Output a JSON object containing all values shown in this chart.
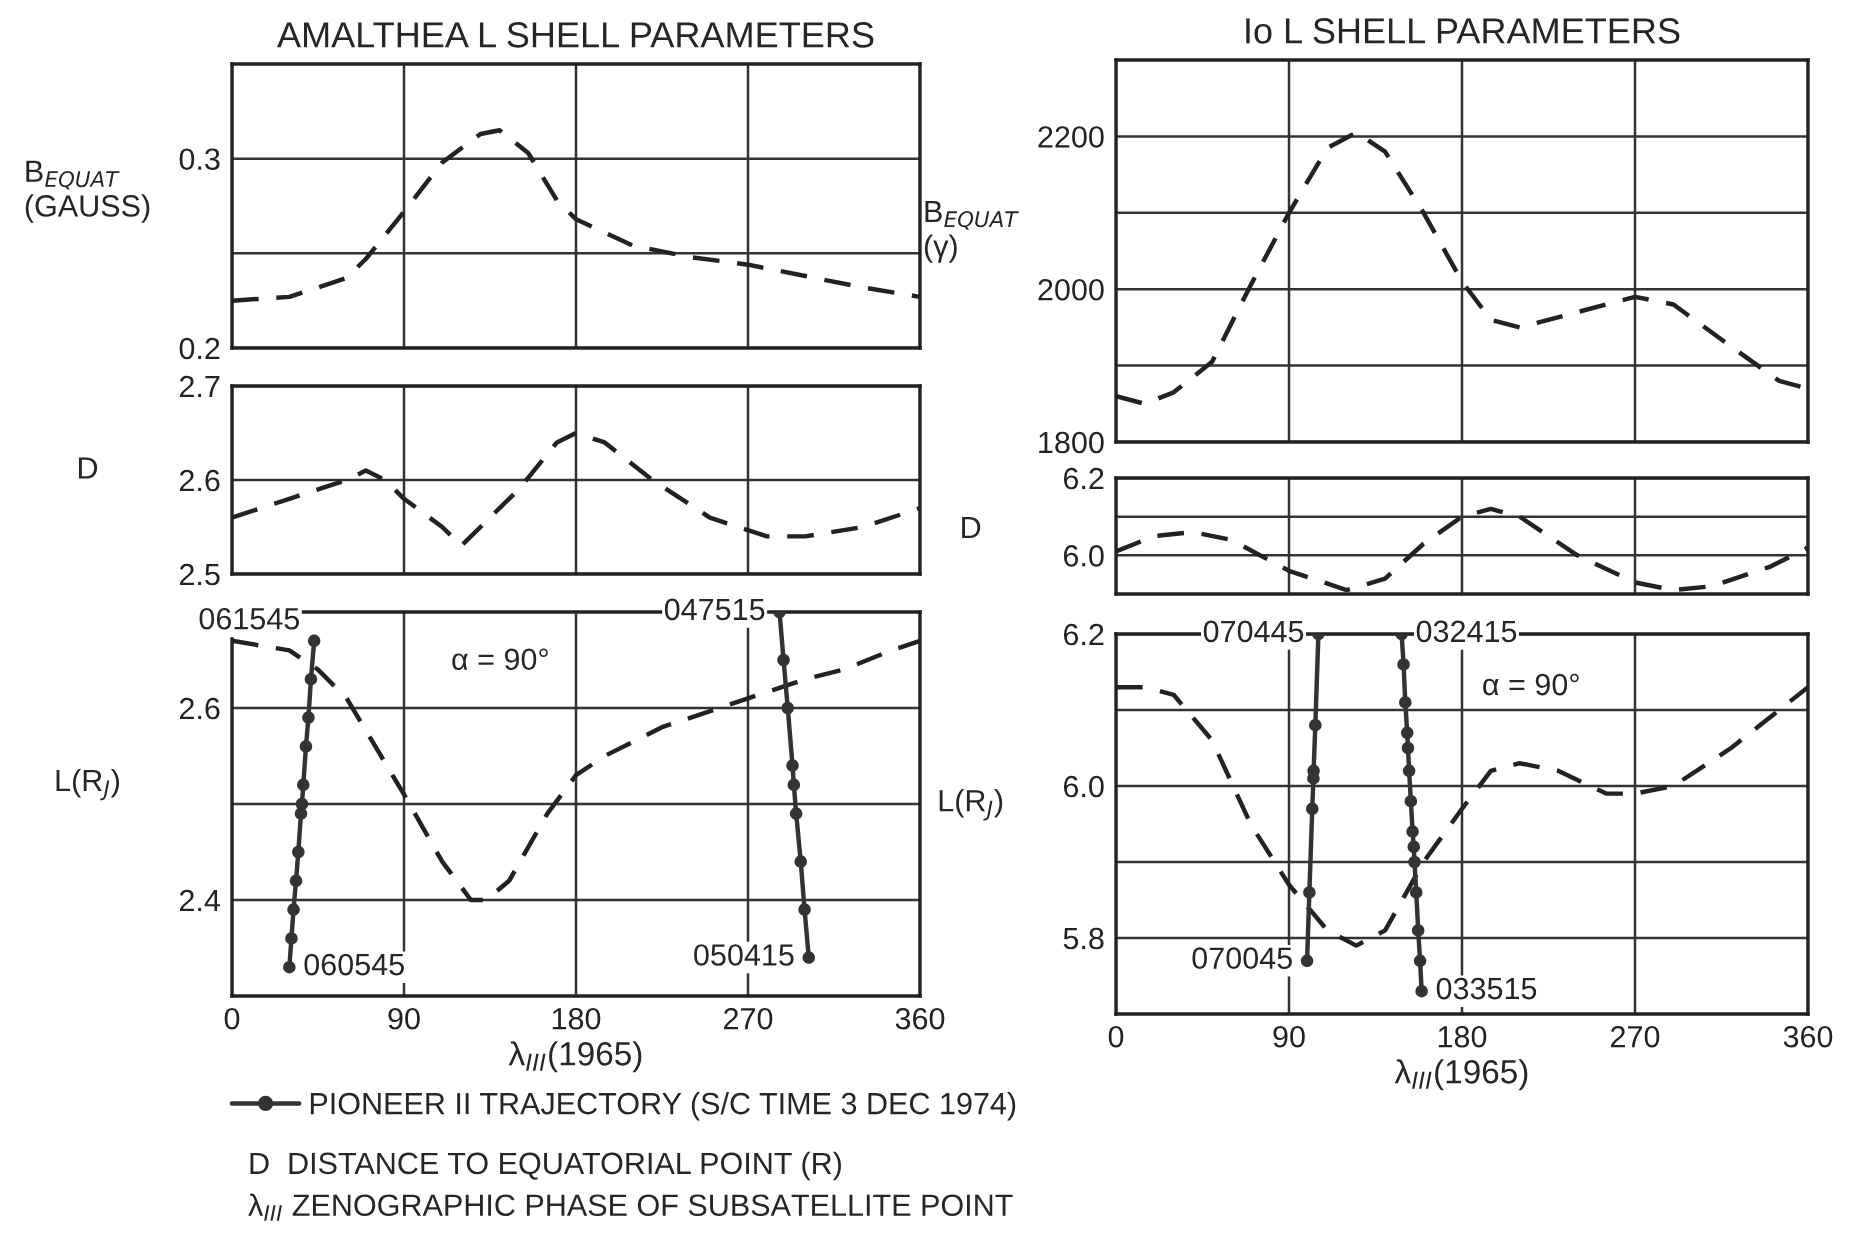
{
  "chart_data": [
    {
      "type": "line",
      "title": "AMALTHEA L SHELL PARAMETERS",
      "ylabel": "B$_{EQUAT}$\n(GAUSS)",
      "xlim": [
        0,
        360
      ],
      "xticks": [
        0,
        90,
        180,
        270,
        360
      ],
      "ylim": [
        0.2,
        0.35
      ],
      "yticks": [
        0.2,
        {
          "value": 0.25,
          "label": null
        },
        0.3
      ],
      "grid": true,
      "tick_labels": "y",
      "series": [
        {
          "color": "#222222",
          "line_style": "dashed",
          "marker": "none",
          "x": [
            0,
            30,
            60,
            70,
            90,
            110,
            130,
            140,
            155,
            170,
            180,
            210,
            240,
            270,
            300,
            330,
            360
          ],
          "values": [
            0.225,
            0.227,
            0.237,
            0.247,
            0.272,
            0.298,
            0.313,
            0.315,
            0.303,
            0.278,
            0.268,
            0.254,
            0.248,
            0.244,
            0.238,
            0.232,
            0.227
          ]
        }
      ]
    },
    {
      "type": "line",
      "title": "Io L SHELL PARAMETERS",
      "ylabel": "B$_{EQUAT}$\n(γ)",
      "xlim": [
        0,
        360
      ],
      "xticks": [
        0,
        90,
        180,
        270,
        360
      ],
      "ylim": [
        1800,
        2300
      ],
      "yticks": [
        1800,
        {
          "value": 1900,
          "label": null
        },
        2000,
        {
          "value": 2100,
          "label": null
        },
        2200
      ],
      "grid": true,
      "tick_labels": "y",
      "series": [
        {
          "color": "#222222",
          "line_style": "dashed",
          "marker": "none",
          "x": [
            0,
            15,
            30,
            50,
            70,
            90,
            110,
            125,
            140,
            160,
            180,
            195,
            210,
            240,
            270,
            290,
            320,
            345,
            360
          ],
          "values": [
            1860,
            1850,
            1865,
            1905,
            2005,
            2100,
            2185,
            2205,
            2180,
            2100,
            2010,
            1960,
            1950,
            1970,
            1990,
            1980,
            1925,
            1880,
            1870
          ]
        }
      ]
    },
    {
      "type": "line",
      "ylabel": "D",
      "xlim": [
        0,
        360
      ],
      "xticks": [
        0,
        90,
        180,
        270,
        360
      ],
      "ylim": [
        2.5,
        2.7
      ],
      "yticks": [
        2.5,
        2.6,
        2.7
      ],
      "grid": true,
      "tick_labels": "y",
      "series": [
        {
          "color": "#222222",
          "line_style": "dashed",
          "marker": "none",
          "x": [
            0,
            30,
            60,
            70,
            80,
            90,
            110,
            120,
            130,
            150,
            170,
            180,
            195,
            220,
            250,
            280,
            300,
            330,
            360
          ],
          "values": [
            2.56,
            2.58,
            2.6,
            2.61,
            2.6,
            2.58,
            2.55,
            2.53,
            2.55,
            2.59,
            2.64,
            2.65,
            2.64,
            2.6,
            2.56,
            2.54,
            2.54,
            2.55,
            2.57
          ]
        }
      ]
    },
    {
      "type": "line",
      "ylabel": "D",
      "xlim": [
        0,
        360
      ],
      "xticks": [
        0,
        90,
        180,
        270,
        360
      ],
      "ylim": [
        5.9,
        6.2
      ],
      "yticks": [
        {
          "value": 6.0,
          "label": "6.0"
        },
        {
          "value": 6.1,
          "label": null
        },
        6.2
      ],
      "grid": true,
      "tick_labels": "y",
      "series": [
        {
          "color": "#222222",
          "line_style": "dashed",
          "marker": "none",
          "x": [
            0,
            20,
            40,
            60,
            90,
            120,
            140,
            160,
            180,
            195,
            210,
            240,
            270,
            290,
            310,
            340,
            360
          ],
          "values": [
            6.01,
            6.05,
            6.06,
            6.04,
            5.96,
            5.91,
            5.94,
            6.03,
            6.1,
            6.12,
            6.1,
            6.0,
            5.93,
            5.91,
            5.92,
            5.97,
            6.02
          ]
        }
      ]
    },
    {
      "type": "line",
      "ylabel": "L(R$_{J}$)",
      "xlabel": "λ$_{III}$(1965)",
      "xlim": [
        0,
        360
      ],
      "xticks": [
        0,
        90,
        180,
        270,
        360
      ],
      "ylim": [
        2.3,
        2.7
      ],
      "yticks": [
        2.4,
        {
          "value": 2.5,
          "label": null
        },
        2.6
      ],
      "grid": true,
      "legend": "bottom",
      "series": [
        {
          "color": "#222222",
          "line_style": "dashed",
          "marker": "none",
          "x": [
            0,
            30,
            45,
            60,
            75,
            90,
            110,
            125,
            133,
            145,
            165,
            180,
            195,
            225,
            270,
            300,
            320,
            345,
            360
          ],
          "values": [
            2.67,
            2.66,
            2.64,
            2.61,
            2.56,
            2.51,
            2.44,
            2.4,
            2.4,
            2.42,
            2.49,
            2.53,
            2.55,
            2.58,
            2.61,
            2.63,
            2.64,
            2.66,
            2.67
          ]
        },
        {
          "name": "PIONEER II TRAJECTORY (S/C TIME 3 DEC 1974)",
          "color": "#333333",
          "line_style": "solid",
          "marker": "circle",
          "x": [
            30,
            31.1,
            32.2,
            33.5,
            34.7,
            36.1,
            36.6,
            37.3,
            38.7,
            40,
            41.3,
            43
          ],
          "values": [
            2.33,
            2.36,
            2.39,
            2.42,
            2.45,
            2.49,
            2.5,
            2.52,
            2.56,
            2.59,
            2.63,
            2.67
          ]
        },
        {
          "color": "#333333",
          "line_style": "solid",
          "marker": "circle",
          "x": [
            286.5,
            288.6,
            290.8,
            293.3,
            294,
            295.2,
            297.6,
            299.6,
            301.8
          ],
          "values": [
            2.7,
            2.65,
            2.6,
            2.54,
            2.52,
            2.49,
            2.44,
            2.39,
            2.34
          ]
        }
      ],
      "annotations": [
        {
          "text": "061545",
          "x": 43,
          "y": 2.67
        },
        {
          "text": "060545",
          "x": 30,
          "y": 2.33
        },
        {
          "text": "047515",
          "x": 286.5,
          "y": 2.7
        },
        {
          "text": "050415",
          "x": 301.8,
          "y": 2.34
        },
        "α = 90°",
        "D  DISTANCE TO EQUATORIAL POINT (R)",
        "λ$_{III}$ ZENOGRAPHIC PHASE OF SUBSATELLITE POINT"
      ]
    },
    {
      "type": "line",
      "ylabel": "L(R$_{J}$)",
      "xlabel": "λ$_{III}$(1965)",
      "xlim": [
        0,
        360
      ],
      "xticks": [
        0,
        90,
        180,
        270,
        360
      ],
      "ylim": [
        5.7,
        6.2
      ],
      "yticks": [
        5.8,
        {
          "value": 5.9,
          "label": null
        },
        {
          "value": 6.0,
          "label": "6.0"
        },
        {
          "value": 6.1,
          "label": null
        },
        6.2
      ],
      "grid": true,
      "series": [
        {
          "color": "#222222",
          "line_style": "dashed",
          "marker": "none",
          "x": [
            0,
            15,
            30,
            50,
            70,
            90,
            110,
            125,
            140,
            160,
            180,
            195,
            210,
            230,
            255,
            270,
            290,
            320,
            345,
            360
          ],
          "values": [
            6.13,
            6.13,
            6.12,
            6.06,
            5.95,
            5.87,
            5.81,
            5.79,
            5.81,
            5.9,
            5.97,
            6.02,
            6.03,
            6.02,
            5.99,
            5.99,
            6.0,
            6.05,
            6.1,
            6.13
          ]
        },
        {
          "color": "#333333",
          "line_style": "solid",
          "marker": "circle",
          "x": [
            99.4,
            100.6,
            102.1,
            102.7,
            102.8,
            103.7,
            105.3
          ],
          "values": [
            5.77,
            5.86,
            5.97,
            6.01,
            6.02,
            6.08,
            6.2
          ]
        },
        {
          "color": "#333333",
          "line_style": "solid",
          "marker": "circle",
          "x": [
            148.6,
            149.6,
            150.5,
            151.5,
            151.9,
            152.5,
            153.4,
            154.3,
            154.9,
            155.3,
            156.2,
            157.2,
            158.2,
            159.0
          ],
          "values": [
            6.2,
            6.16,
            6.11,
            6.07,
            6.05,
            6.02,
            5.98,
            5.94,
            5.92,
            5.9,
            5.86,
            5.81,
            5.77,
            5.73
          ]
        }
      ],
      "annotations": [
        {
          "text": "070445",
          "x": 105.3,
          "y": 6.2
        },
        {
          "text": "070045",
          "x": 99.4,
          "y": 5.77
        },
        {
          "text": "032415",
          "x": 148.6,
          "y": 6.2
        },
        {
          "text": "033515",
          "x": 159.0,
          "y": 5.73
        },
        "α = 90°"
      ]
    }
  ]
}
